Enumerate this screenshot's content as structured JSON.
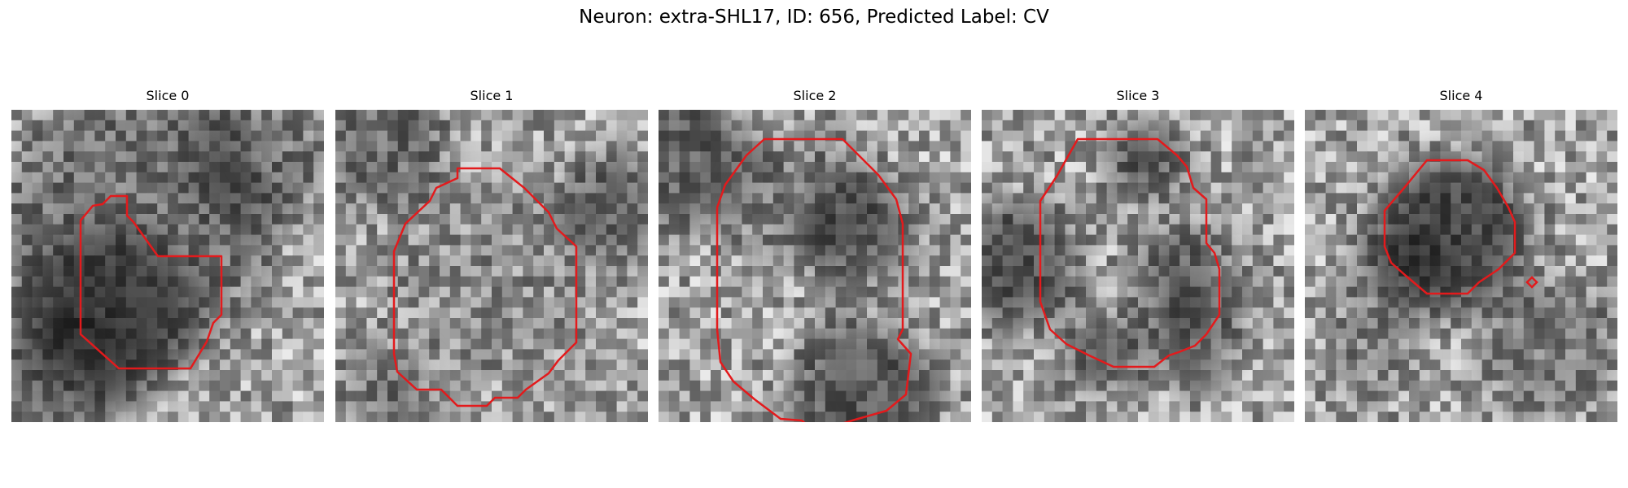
{
  "figure": {
    "title": "Neuron: extra-SHL17, ID: 656, Predicted Label: CV",
    "contour_color": "#e31a1c"
  },
  "slices": [
    {
      "label": "Slice 0"
    },
    {
      "label": "Slice 1"
    },
    {
      "label": "Slice 2"
    },
    {
      "label": "Slice 3"
    },
    {
      "label": "Slice 4"
    }
  ]
}
